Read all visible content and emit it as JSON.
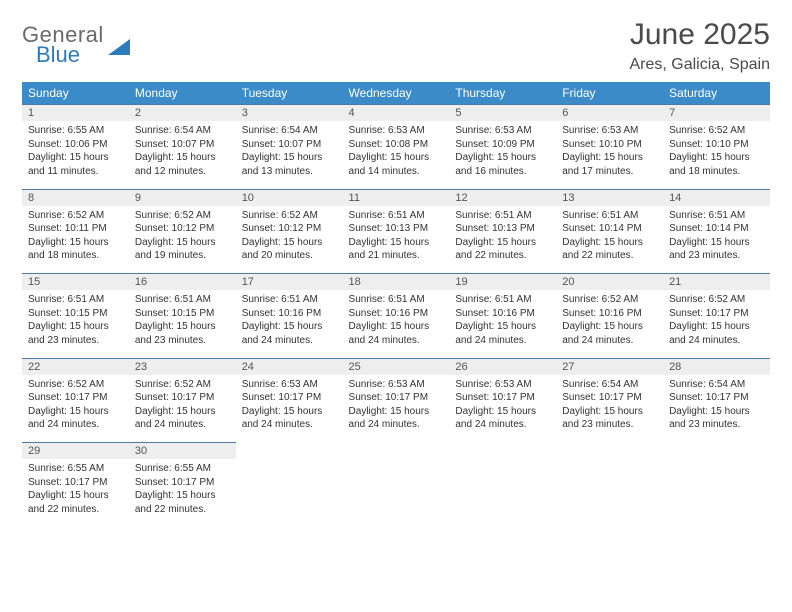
{
  "logo": {
    "word1": "General",
    "word2": "Blue"
  },
  "title": "June 2025",
  "subtitle": "Ares, Galicia, Spain",
  "colors": {
    "header_bg": "#3b8bc9",
    "header_text": "#ffffff",
    "daynum_bg": "#eeeeee",
    "daynum_border": "#4a7aa5",
    "body_text": "#333333",
    "logo_gray": "#6a6a6a",
    "logo_blue": "#2b7bbf"
  },
  "typography": {
    "title_fontsize": 30,
    "subtitle_fontsize": 16,
    "header_fontsize": 12,
    "cell_fontsize": 10
  },
  "dayNames": [
    "Sunday",
    "Monday",
    "Tuesday",
    "Wednesday",
    "Thursday",
    "Friday",
    "Saturday"
  ],
  "weeks": [
    [
      {
        "n": "1",
        "sr": "6:55 AM",
        "ss": "10:06 PM",
        "dl": "15 hours and 11 minutes."
      },
      {
        "n": "2",
        "sr": "6:54 AM",
        "ss": "10:07 PM",
        "dl": "15 hours and 12 minutes."
      },
      {
        "n": "3",
        "sr": "6:54 AM",
        "ss": "10:07 PM",
        "dl": "15 hours and 13 minutes."
      },
      {
        "n": "4",
        "sr": "6:53 AM",
        "ss": "10:08 PM",
        "dl": "15 hours and 14 minutes."
      },
      {
        "n": "5",
        "sr": "6:53 AM",
        "ss": "10:09 PM",
        "dl": "15 hours and 16 minutes."
      },
      {
        "n": "6",
        "sr": "6:53 AM",
        "ss": "10:10 PM",
        "dl": "15 hours and 17 minutes."
      },
      {
        "n": "7",
        "sr": "6:52 AM",
        "ss": "10:10 PM",
        "dl": "15 hours and 18 minutes."
      }
    ],
    [
      {
        "n": "8",
        "sr": "6:52 AM",
        "ss": "10:11 PM",
        "dl": "15 hours and 18 minutes."
      },
      {
        "n": "9",
        "sr": "6:52 AM",
        "ss": "10:12 PM",
        "dl": "15 hours and 19 minutes."
      },
      {
        "n": "10",
        "sr": "6:52 AM",
        "ss": "10:12 PM",
        "dl": "15 hours and 20 minutes."
      },
      {
        "n": "11",
        "sr": "6:51 AM",
        "ss": "10:13 PM",
        "dl": "15 hours and 21 minutes."
      },
      {
        "n": "12",
        "sr": "6:51 AM",
        "ss": "10:13 PM",
        "dl": "15 hours and 22 minutes."
      },
      {
        "n": "13",
        "sr": "6:51 AM",
        "ss": "10:14 PM",
        "dl": "15 hours and 22 minutes."
      },
      {
        "n": "14",
        "sr": "6:51 AM",
        "ss": "10:14 PM",
        "dl": "15 hours and 23 minutes."
      }
    ],
    [
      {
        "n": "15",
        "sr": "6:51 AM",
        "ss": "10:15 PM",
        "dl": "15 hours and 23 minutes."
      },
      {
        "n": "16",
        "sr": "6:51 AM",
        "ss": "10:15 PM",
        "dl": "15 hours and 23 minutes."
      },
      {
        "n": "17",
        "sr": "6:51 AM",
        "ss": "10:16 PM",
        "dl": "15 hours and 24 minutes."
      },
      {
        "n": "18",
        "sr": "6:51 AM",
        "ss": "10:16 PM",
        "dl": "15 hours and 24 minutes."
      },
      {
        "n": "19",
        "sr": "6:51 AM",
        "ss": "10:16 PM",
        "dl": "15 hours and 24 minutes."
      },
      {
        "n": "20",
        "sr": "6:52 AM",
        "ss": "10:16 PM",
        "dl": "15 hours and 24 minutes."
      },
      {
        "n": "21",
        "sr": "6:52 AM",
        "ss": "10:17 PM",
        "dl": "15 hours and 24 minutes."
      }
    ],
    [
      {
        "n": "22",
        "sr": "6:52 AM",
        "ss": "10:17 PM",
        "dl": "15 hours and 24 minutes."
      },
      {
        "n": "23",
        "sr": "6:52 AM",
        "ss": "10:17 PM",
        "dl": "15 hours and 24 minutes."
      },
      {
        "n": "24",
        "sr": "6:53 AM",
        "ss": "10:17 PM",
        "dl": "15 hours and 24 minutes."
      },
      {
        "n": "25",
        "sr": "6:53 AM",
        "ss": "10:17 PM",
        "dl": "15 hours and 24 minutes."
      },
      {
        "n": "26",
        "sr": "6:53 AM",
        "ss": "10:17 PM",
        "dl": "15 hours and 24 minutes."
      },
      {
        "n": "27",
        "sr": "6:54 AM",
        "ss": "10:17 PM",
        "dl": "15 hours and 23 minutes."
      },
      {
        "n": "28",
        "sr": "6:54 AM",
        "ss": "10:17 PM",
        "dl": "15 hours and 23 minutes."
      }
    ],
    [
      {
        "n": "29",
        "sr": "6:55 AM",
        "ss": "10:17 PM",
        "dl": "15 hours and 22 minutes."
      },
      {
        "n": "30",
        "sr": "6:55 AM",
        "ss": "10:17 PM",
        "dl": "15 hours and 22 minutes."
      },
      null,
      null,
      null,
      null,
      null
    ]
  ],
  "labels": {
    "sunrise": "Sunrise: ",
    "sunset": "Sunset: ",
    "daylight": "Daylight: "
  }
}
